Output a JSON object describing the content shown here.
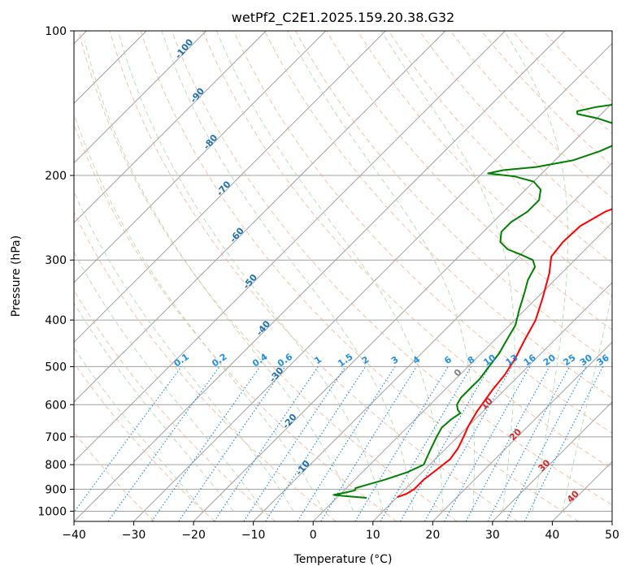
{
  "chart_data": {
    "type": "line",
    "title": "wetPf2_C2E1.2025.159.20.38.G32",
    "xlabel": "Temperature (°C)",
    "ylabel": "Pressure (hPa)",
    "xlim": [
      -40,
      50
    ],
    "ylim": [
      1050,
      100
    ],
    "y_scale": "log",
    "grid": true,
    "x_ticks": [
      "−40",
      "−30",
      "−20",
      "−10",
      "0",
      "10",
      "20",
      "30",
      "40",
      "50"
    ],
    "y_ticks": [
      "100",
      "200",
      "300",
      "400",
      "500",
      "600",
      "700",
      "800",
      "900",
      "1000"
    ],
    "colors": {
      "temperature": "#ff0000",
      "dewpoint": "#008000",
      "isotherm": "#a0a0a0",
      "dry_adiabat": "#f4a582",
      "moist_adiabat": "#a6d6a6",
      "mixing_ratio": "#1f8fe6",
      "adiabat_label": "#1f6fb4",
      "temp_label": "#d62728",
      "zero_label": "#808080"
    },
    "series": [
      {
        "key": "temperature",
        "points": [
          [
            10.0,
            935
          ],
          [
            11.0,
            920
          ],
          [
            11.5,
            900
          ],
          [
            11.5,
            860
          ],
          [
            12.0,
            820
          ],
          [
            12.5,
            780
          ],
          [
            12.0,
            740
          ],
          [
            11.0,
            700
          ],
          [
            10.0,
            665
          ],
          [
            9.0,
            620
          ],
          [
            8.0,
            560
          ],
          [
            7.5,
            520
          ],
          [
            6.5,
            480
          ],
          [
            5.0,
            440
          ],
          [
            3.5,
            400
          ],
          [
            1.0,
            360
          ],
          [
            -2.0,
            320
          ],
          [
            -4.5,
            295
          ],
          [
            -5.0,
            275
          ],
          [
            -4.8,
            255
          ],
          [
            -3.0,
            238
          ],
          [
            -0.5,
            228
          ],
          [
            3.0,
            218
          ],
          [
            6.0,
            210
          ],
          [
            8.5,
            202
          ],
          [
            10.0,
            193
          ],
          [
            11.5,
            182
          ],
          [
            13.0,
            172
          ],
          [
            15.0,
            163
          ],
          [
            18.0,
            153
          ],
          [
            20.0,
            145
          ],
          [
            21.5,
            137
          ],
          [
            21.5,
            127
          ],
          [
            21.0,
            117
          ],
          [
            21.0,
            110
          ],
          [
            21.5,
            106
          ],
          [
            22.5,
            102
          ],
          [
            23.0,
            100
          ]
        ]
      },
      {
        "key": "dewpoint",
        "points": [
          [
            5.0,
            938
          ],
          [
            1.0,
            930
          ],
          [
            -1.0,
            925
          ],
          [
            0.5,
            915
          ],
          [
            1.8,
            905
          ],
          [
            1.5,
            895
          ],
          [
            3.0,
            880
          ],
          [
            5.0,
            860
          ],
          [
            7.5,
            830
          ],
          [
            9.0,
            800
          ],
          [
            8.5,
            780
          ],
          [
            8.0,
            760
          ],
          [
            7.5,
            740
          ],
          [
            6.5,
            700
          ],
          [
            5.8,
            670
          ],
          [
            6.0,
            645
          ],
          [
            6.5,
            625
          ],
          [
            5.5,
            615
          ],
          [
            4.5,
            600
          ],
          [
            4.0,
            580
          ],
          [
            4.0,
            560
          ],
          [
            4.0,
            530
          ],
          [
            3.5,
            500
          ],
          [
            3.0,
            470
          ],
          [
            2.0,
            440
          ],
          [
            1.0,
            410
          ],
          [
            -1.0,
            380
          ],
          [
            -3.0,
            350
          ],
          [
            -4.5,
            330
          ],
          [
            -5.5,
            310
          ],
          [
            -7.0,
            300
          ],
          [
            -10.0,
            292
          ],
          [
            -13.0,
            285
          ],
          [
            -15.5,
            275
          ],
          [
            -17.0,
            262
          ],
          [
            -17.0,
            250
          ],
          [
            -16.0,
            238
          ],
          [
            -16.0,
            225
          ],
          [
            -17.5,
            214
          ],
          [
            -20.0,
            206
          ],
          [
            -24.0,
            201
          ],
          [
            -29.0,
            198
          ],
          [
            -27.0,
            195
          ],
          [
            -22.0,
            192
          ],
          [
            -17.0,
            186
          ],
          [
            -14.0,
            178
          ],
          [
            -12.0,
            170
          ],
          [
            -12.0,
            165
          ],
          [
            -14.5,
            158
          ],
          [
            -20.0,
            152
          ],
          [
            -24.0,
            149
          ],
          [
            -24.5,
            147
          ],
          [
            -22.0,
            144
          ],
          [
            -16.0,
            140
          ],
          [
            -14.0,
            135
          ],
          [
            -13.0,
            128
          ],
          [
            -10.0,
            120
          ],
          [
            -7.0,
            112
          ],
          [
            -5.5,
            107
          ],
          [
            -4.0,
            102
          ],
          [
            -3.0,
            100
          ]
        ]
      }
    ],
    "dry_adiabat_labels": [
      "-100",
      "-90",
      "-80",
      "-70",
      "-60",
      "-50",
      "-40",
      "-30",
      "-20",
      "-10"
    ],
    "mixing_ratio_labels": [
      "0.1",
      "0.2",
      "0.4",
      "0.6",
      "1",
      "1.5",
      "2",
      "3",
      "4",
      "6",
      "8",
      "10",
      "13",
      "16",
      "20",
      "25",
      "30",
      "36"
    ],
    "isotherm_labels": [
      "0",
      "10",
      "20",
      "30",
      "40"
    ]
  }
}
